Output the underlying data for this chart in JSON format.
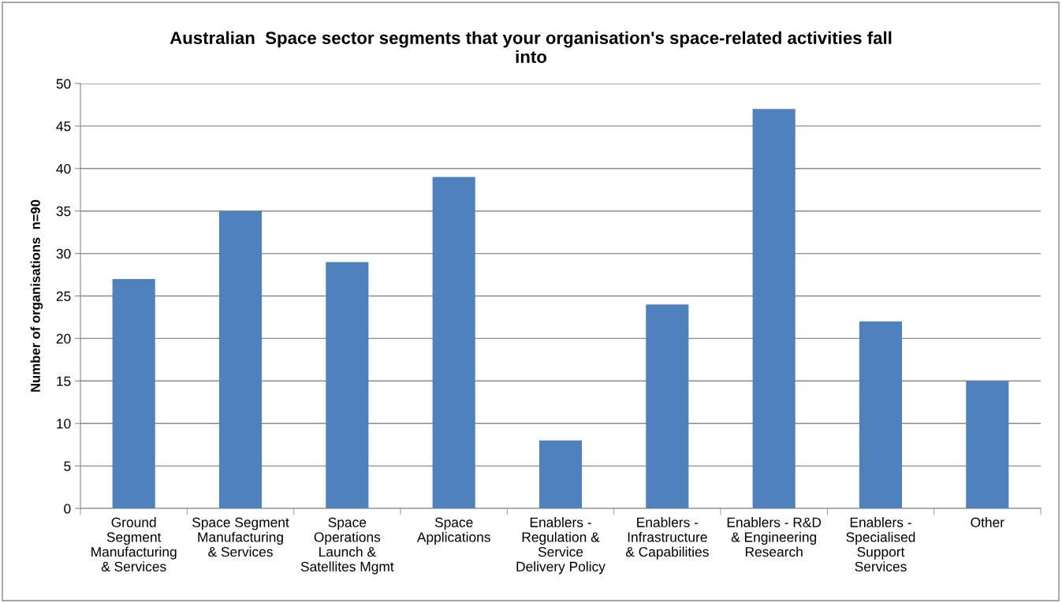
{
  "chart_data": {
    "type": "bar",
    "title": "Australian  Space sector segments that your organisation's space-related activities fall\ninto",
    "ylabel": "Number of organisations  n=90",
    "categories": [
      "Ground\nSegment\nManufacturing\n& Services",
      "Space Segment\nManufacturing\n& Services",
      "Space\nOperations\nLaunch &\nSatellites Mgmt",
      "Space\nApplications",
      "Enablers -\nRegulation &\nService\nDelivery Policy",
      "Enablers -\nInfrastructure\n& Capabilities",
      "Enablers - R&D\n& Engineering\nResearch",
      "Enablers -\nSpecialised\nSupport\nServices",
      "Other"
    ],
    "values": [
      27,
      35,
      29,
      39,
      8,
      24,
      47,
      22,
      15
    ],
    "color": "#4f81bd",
    "ylim": [
      0,
      50
    ],
    "yticks": [
      0,
      5,
      10,
      15,
      20,
      25,
      30,
      35,
      40,
      45,
      50
    ],
    "grid": "y",
    "legend": false
  }
}
